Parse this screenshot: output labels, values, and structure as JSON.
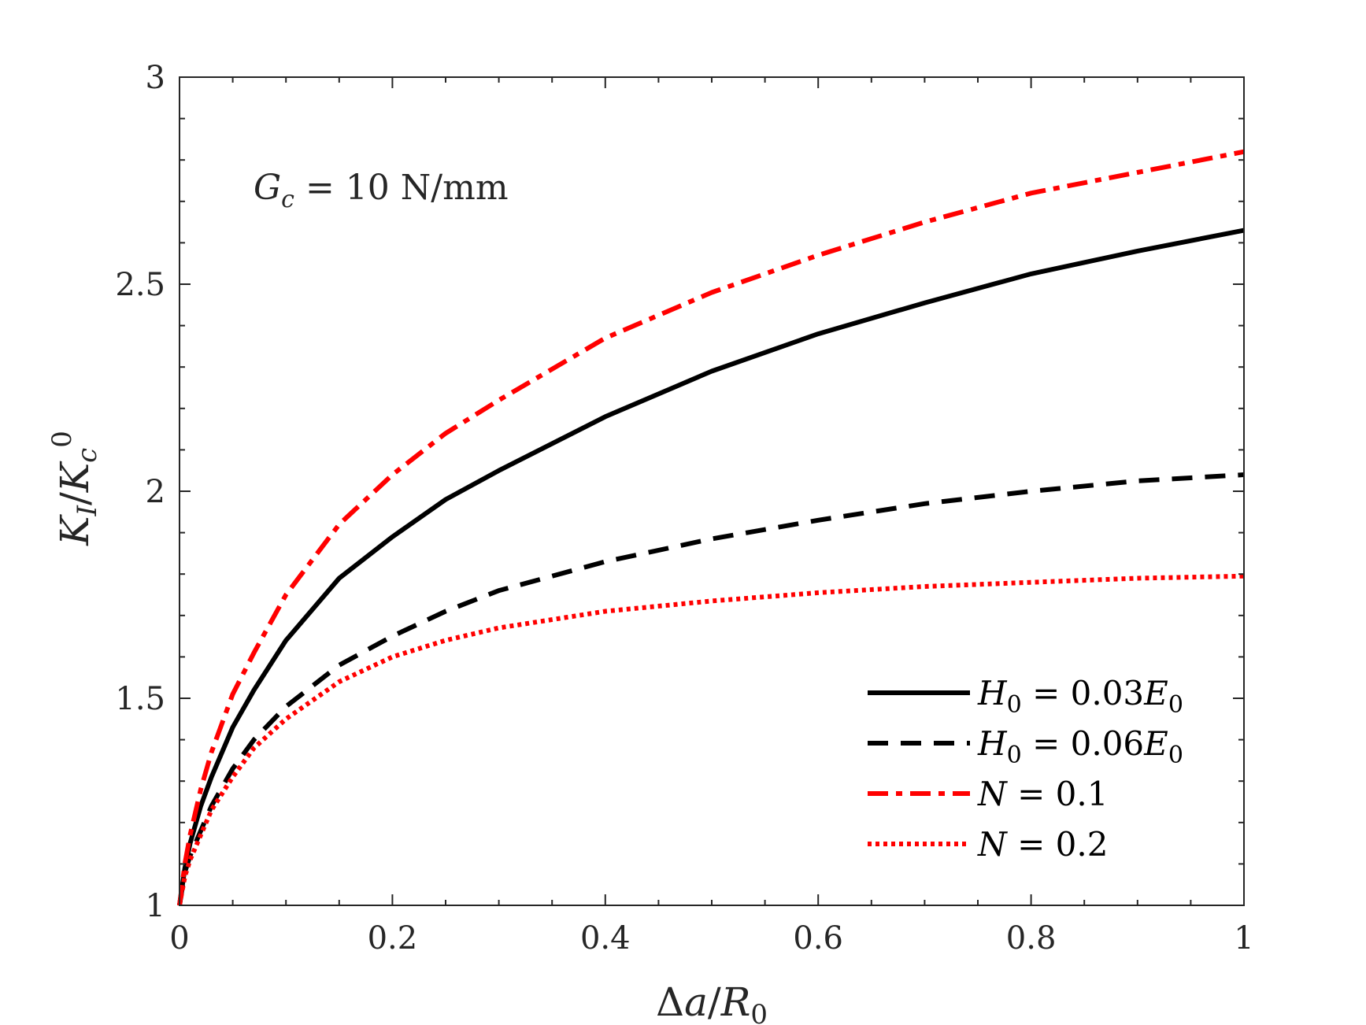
{
  "chart_data": {
    "type": "line",
    "title": "",
    "xlabel": "Δa/R0",
    "ylabel": "K_I/K_c^0",
    "xlim": [
      0,
      1
    ],
    "ylim": [
      1,
      3
    ],
    "xticks": [
      0,
      0.2,
      0.4,
      0.6,
      0.8,
      1
    ],
    "xtick_labels": [
      "0",
      "0.2",
      "0.4",
      "0.6",
      "0.8",
      "1"
    ],
    "yticks": [
      1,
      1.5,
      2,
      2.5,
      3
    ],
    "ytick_labels": [
      "1",
      "1.5",
      "2",
      "2.5",
      "3"
    ],
    "grid": false,
    "legend_position": "bottom-right",
    "annotation": {
      "symbol": "G",
      "subscript": "c",
      "text": " = 10 N/mm"
    },
    "series": [
      {
        "name": "H0 = 0.03E0",
        "label_parts": {
          "a": "H",
          "a_sub": "0",
          "mid": " = 0.03",
          "b": "E",
          "b_sub": "0"
        },
        "color": "#000000",
        "style": "solid",
        "x": [
          0,
          0.005,
          0.01,
          0.02,
          0.03,
          0.05,
          0.07,
          0.1,
          0.15,
          0.2,
          0.25,
          0.3,
          0.4,
          0.5,
          0.6,
          0.7,
          0.8,
          0.9,
          1.0
        ],
        "values": [
          1.0,
          1.09,
          1.15,
          1.24,
          1.31,
          1.43,
          1.52,
          1.64,
          1.79,
          1.89,
          1.98,
          2.05,
          2.18,
          2.29,
          2.38,
          2.455,
          2.525,
          2.58,
          2.63
        ]
      },
      {
        "name": "H0 = 0.06E0",
        "label_parts": {
          "a": "H",
          "a_sub": "0",
          "mid": " = 0.06",
          "b": "E",
          "b_sub": "0"
        },
        "color": "#000000",
        "style": "dashed",
        "x": [
          0,
          0.005,
          0.01,
          0.02,
          0.03,
          0.05,
          0.07,
          0.1,
          0.15,
          0.2,
          0.25,
          0.3,
          0.4,
          0.5,
          0.6,
          0.7,
          0.8,
          0.9,
          1.0
        ],
        "values": [
          1.0,
          1.08,
          1.12,
          1.18,
          1.24,
          1.33,
          1.4,
          1.48,
          1.58,
          1.65,
          1.71,
          1.76,
          1.83,
          1.885,
          1.93,
          1.97,
          2.0,
          2.025,
          2.04
        ]
      },
      {
        "name": "N = 0.1",
        "label_parts": {
          "a": "N",
          "a_sub": "",
          "mid": " = 0.1",
          "b": "",
          "b_sub": ""
        },
        "color": "#ff0000",
        "style": "dashdot",
        "x": [
          0,
          0.005,
          0.01,
          0.02,
          0.03,
          0.05,
          0.07,
          0.1,
          0.15,
          0.2,
          0.25,
          0.3,
          0.4,
          0.5,
          0.6,
          0.7,
          0.8,
          0.9,
          1.0
        ],
        "values": [
          1.0,
          1.1,
          1.17,
          1.28,
          1.37,
          1.51,
          1.61,
          1.75,
          1.92,
          2.04,
          2.14,
          2.22,
          2.37,
          2.48,
          2.57,
          2.65,
          2.72,
          2.77,
          2.82
        ]
      },
      {
        "name": "N = 0.2",
        "label_parts": {
          "a": "N",
          "a_sub": "",
          "mid": " = 0.2",
          "b": "",
          "b_sub": ""
        },
        "color": "#ff0000",
        "style": "dotted",
        "x": [
          0,
          0.005,
          0.01,
          0.02,
          0.03,
          0.05,
          0.07,
          0.1,
          0.15,
          0.2,
          0.25,
          0.3,
          0.4,
          0.5,
          0.6,
          0.7,
          0.8,
          0.9,
          1.0
        ],
        "values": [
          1.0,
          1.07,
          1.11,
          1.17,
          1.23,
          1.31,
          1.38,
          1.45,
          1.54,
          1.6,
          1.64,
          1.67,
          1.71,
          1.735,
          1.755,
          1.77,
          1.78,
          1.79,
          1.795
        ]
      }
    ]
  }
}
